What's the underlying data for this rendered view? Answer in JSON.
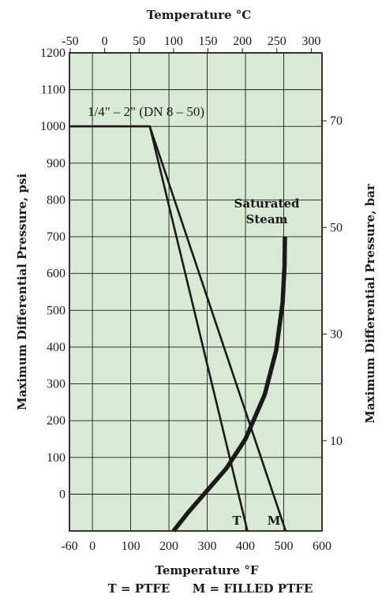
{
  "chart_data": {
    "type": "line",
    "xlabel": "Temperature °F",
    "xlabel_top": "Temperature °C",
    "ylabel": "Maximum Differential Pressure, psi",
    "ylabel_right": "Maximum Differential Pressure, bar",
    "xlim": [
      -60,
      600
    ],
    "ylim": [
      -100,
      1200
    ],
    "x_ticks": [
      "-60",
      "0",
      "100",
      "200",
      "300",
      "400",
      "500",
      "600"
    ],
    "x_tick_values": [
      -60,
      0,
      100,
      200,
      300,
      400,
      500,
      600
    ],
    "y_ticks": [
      "0",
      "100",
      "200",
      "300",
      "400",
      "500",
      "600",
      "700",
      "800",
      "900",
      "1000",
      "1100",
      "1200"
    ],
    "y_tick_values": [
      0,
      100,
      200,
      300,
      400,
      500,
      600,
      700,
      800,
      900,
      1000,
      1100,
      1200
    ],
    "top_ticks": [
      "-50",
      "0",
      "50",
      "100",
      "150",
      "200",
      "250",
      "300"
    ],
    "top_tick_values": [
      -50,
      0,
      50,
      100,
      150,
      200,
      250,
      300
    ],
    "right_ticks": [
      "10",
      "30",
      "50",
      "70"
    ],
    "right_tick_values": [
      10,
      30,
      50,
      70
    ],
    "grid": true,
    "background": "#d8ead4",
    "line_color": "#1a1a1a",
    "size_annotation": "1/4\" – 2\" (DN 8 – 50)",
    "steam_label_1": "Saturated",
    "steam_label_2": "Steam",
    "series": [
      {
        "name": "T",
        "x": [
          -60,
          150,
          405
        ],
        "y": [
          1000,
          1000,
          -100
        ]
      },
      {
        "name": "M",
        "x": [
          -60,
          150,
          505
        ],
        "y": [
          1000,
          1000,
          -100
        ]
      },
      {
        "name": "Saturated Steam",
        "x": [
          212,
          250,
          300,
          350,
          400,
          450,
          480,
          497,
          502,
          503
        ],
        "y": [
          -100,
          -50,
          10,
          70,
          150,
          270,
          390,
          520,
          620,
          700
        ]
      }
    ],
    "legend_T": "T = PTFE",
    "legend_M": "M = FILLED PTFE"
  }
}
